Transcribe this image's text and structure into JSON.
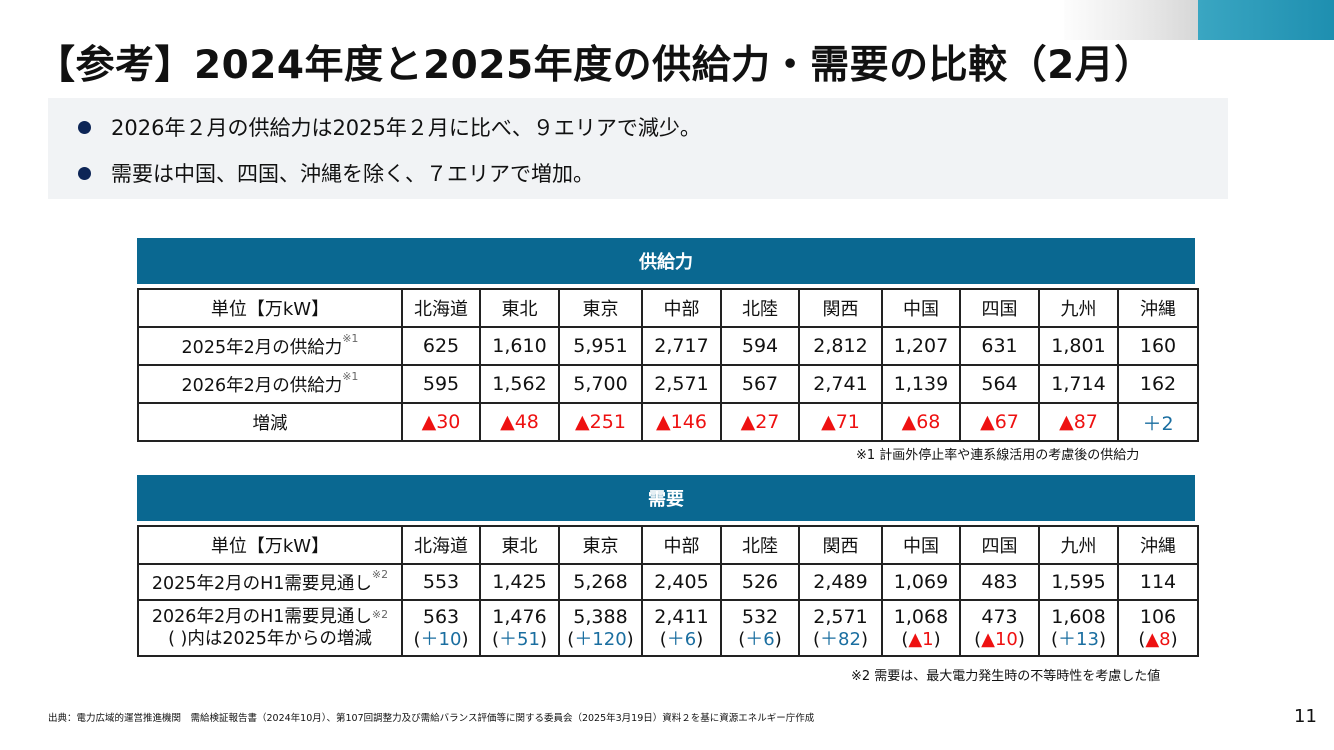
{
  "title": "【参考】2024年度と2025年度の供給力・需要の比較（2月）",
  "summary": {
    "bullets": [
      "2026年２月の供給力は2025年２月に比べ、９エリアで減少。",
      "需要は中国、四国、沖縄を除く、７エリアで増加。"
    ]
  },
  "supply": {
    "band_label": "供給力",
    "unit_label": "単位【万kW】",
    "areas": [
      "北海道",
      "東北",
      "東京",
      "中部",
      "北陸",
      "関西",
      "中国",
      "四国",
      "九州",
      "沖縄"
    ],
    "rows": [
      {
        "label": "2025年2月の供給力",
        "ref": "※1",
        "values": [
          "625",
          "1,610",
          "5,951",
          "2,717",
          "594",
          "2,812",
          "1,207",
          "631",
          "1,801",
          "160"
        ]
      },
      {
        "label": "2026年2月の供給力",
        "ref": "※1",
        "values": [
          "595",
          "1,562",
          "5,700",
          "2,571",
          "567",
          "2,741",
          "1,139",
          "564",
          "1,714",
          "162"
        ]
      }
    ],
    "diff_label": "増減",
    "diff": [
      "▲30",
      "▲48",
      "▲251",
      "▲146",
      "▲27",
      "▲71",
      "▲68",
      "▲67",
      "▲87",
      "＋2"
    ],
    "note": "※1  計画外停止率や連系線活用の考慮後の供給力"
  },
  "demand": {
    "band_label": "需要",
    "unit_label": "単位【万kW】",
    "areas": [
      "北海道",
      "東北",
      "東京",
      "中部",
      "北陸",
      "関西",
      "中国",
      "四国",
      "九州",
      "沖縄"
    ],
    "row1": {
      "label": "2025年2月のH1需要見通し",
      "ref": "※2",
      "values": [
        "553",
        "1,425",
        "5,268",
        "2,405",
        "526",
        "2,489",
        "1,069",
        "483",
        "1,595",
        "114"
      ]
    },
    "row2": {
      "label": "2026年2月のH1需要見通し",
      "ref": "※2",
      "label2": "( )内は2025年からの増減",
      "values": [
        "563",
        "1,476",
        "5,388",
        "2,411",
        "532",
        "2,571",
        "1,068",
        "473",
        "1,608",
        "106"
      ],
      "changes": [
        "＋10",
        "＋51",
        "＋120",
        "＋6",
        "＋6",
        "＋82",
        "▲1",
        "▲10",
        "＋13",
        "▲8"
      ]
    },
    "note": "※2  需要は、最大電力発生時の不等時性を考慮した値"
  },
  "source": "出典：電力広域的運営推進機関　需給検証報告書（2024年10月）、第107回調整力及び需給バランス評価等に関する委員会（2025年3月19日）資料２を基に資源エネルギー庁作成",
  "page_number": "11",
  "colors": {
    "band": "#0a6891",
    "decrease": "#e11111",
    "increase": "#1a6ea0",
    "bullet": "#0d2556"
  }
}
